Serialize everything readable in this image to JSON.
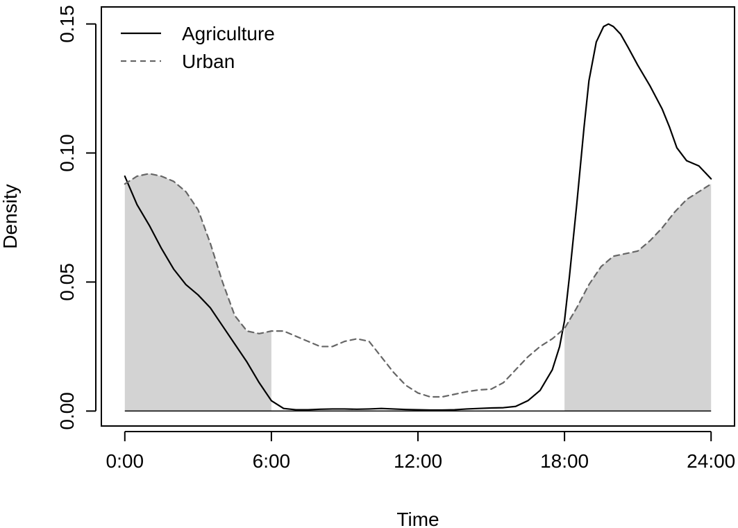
{
  "chart_data": {
    "type": "line",
    "title": "",
    "xlabel": "Time",
    "ylabel": "Density",
    "xlim": [
      -0.96,
      24.96
    ],
    "ylim": [
      -0.0058,
      0.1566
    ],
    "x_ticks": [
      {
        "value": 0,
        "label": "0:00"
      },
      {
        "value": 6,
        "label": "6:00"
      },
      {
        "value": 12,
        "label": "12:00"
      },
      {
        "value": 18,
        "label": "18:00"
      },
      {
        "value": 24,
        "label": "24:00"
      }
    ],
    "y_ticks": [
      {
        "value": 0.0,
        "label": "0.00"
      },
      {
        "value": 0.05,
        "label": "0.05"
      },
      {
        "value": 0.1,
        "label": "0.10"
      },
      {
        "value": 0.15,
        "label": "0.15"
      }
    ],
    "legend": {
      "placement": "top-left"
    },
    "grid": false,
    "series": [
      {
        "name": "Agriculture",
        "style": "solid",
        "color": "#000000",
        "x": [
          0,
          0.5,
          1,
          1.5,
          2,
          2.5,
          3,
          3.5,
          4,
          4.5,
          5,
          5.5,
          6,
          6.5,
          7,
          7.5,
          8,
          8.5,
          9,
          9.5,
          10,
          10.5,
          11,
          11.5,
          12,
          12.5,
          13,
          13.5,
          14,
          14.5,
          15,
          15.5,
          16,
          16.5,
          17,
          17.5,
          17.8,
          18,
          18.2,
          18.5,
          18.8,
          19,
          19.3,
          19.6,
          19.8,
          20,
          20.3,
          20.6,
          21,
          21.5,
          22,
          22.3,
          22.6,
          23,
          23.5,
          24
        ],
        "y": [
          0.091,
          0.08,
          0.072,
          0.063,
          0.055,
          0.049,
          0.045,
          0.04,
          0.033,
          0.026,
          0.019,
          0.011,
          0.004,
          0.001,
          0.0005,
          0.0005,
          0.0007,
          0.0008,
          0.0008,
          0.0007,
          0.0008,
          0.001,
          0.0008,
          0.0006,
          0.0005,
          0.0004,
          0.0004,
          0.0005,
          0.0008,
          0.001,
          0.0012,
          0.0013,
          0.0018,
          0.004,
          0.008,
          0.016,
          0.025,
          0.035,
          0.052,
          0.08,
          0.11,
          0.128,
          0.143,
          0.149,
          0.15,
          0.149,
          0.146,
          0.141,
          0.134,
          0.126,
          0.117,
          0.11,
          0.102,
          0.097,
          0.095,
          0.09
        ]
      },
      {
        "name": "Urban",
        "style": "dashed",
        "color": "#666666",
        "x": [
          0,
          0.5,
          1,
          1.5,
          2,
          2.5,
          3,
          3.5,
          4,
          4.5,
          5,
          5.5,
          6,
          6.5,
          7,
          7.5,
          8,
          8.5,
          9,
          9.5,
          10,
          10.5,
          11,
          11.5,
          12,
          12.5,
          13,
          13.5,
          14,
          14.5,
          15,
          15.5,
          16,
          16.5,
          17,
          17.5,
          18,
          18.5,
          19,
          19.5,
          20,
          20.5,
          21,
          21.5,
          22,
          22.5,
          23,
          23.5,
          24
        ],
        "y": [
          0.088,
          0.091,
          0.092,
          0.091,
          0.089,
          0.085,
          0.078,
          0.065,
          0.05,
          0.037,
          0.031,
          0.03,
          0.031,
          0.031,
          0.029,
          0.027,
          0.025,
          0.025,
          0.027,
          0.028,
          0.027,
          0.021,
          0.015,
          0.01,
          0.007,
          0.0055,
          0.0055,
          0.0065,
          0.0075,
          0.0082,
          0.0085,
          0.011,
          0.016,
          0.021,
          0.025,
          0.028,
          0.032,
          0.04,
          0.049,
          0.056,
          0.06,
          0.061,
          0.062,
          0.066,
          0.071,
          0.077,
          0.082,
          0.085,
          0.088
        ]
      }
    ],
    "shaded_area": {
      "follows_series": "Urban",
      "excluded_range": [
        6,
        18
      ],
      "fill_color": "#d3d3d3"
    }
  }
}
